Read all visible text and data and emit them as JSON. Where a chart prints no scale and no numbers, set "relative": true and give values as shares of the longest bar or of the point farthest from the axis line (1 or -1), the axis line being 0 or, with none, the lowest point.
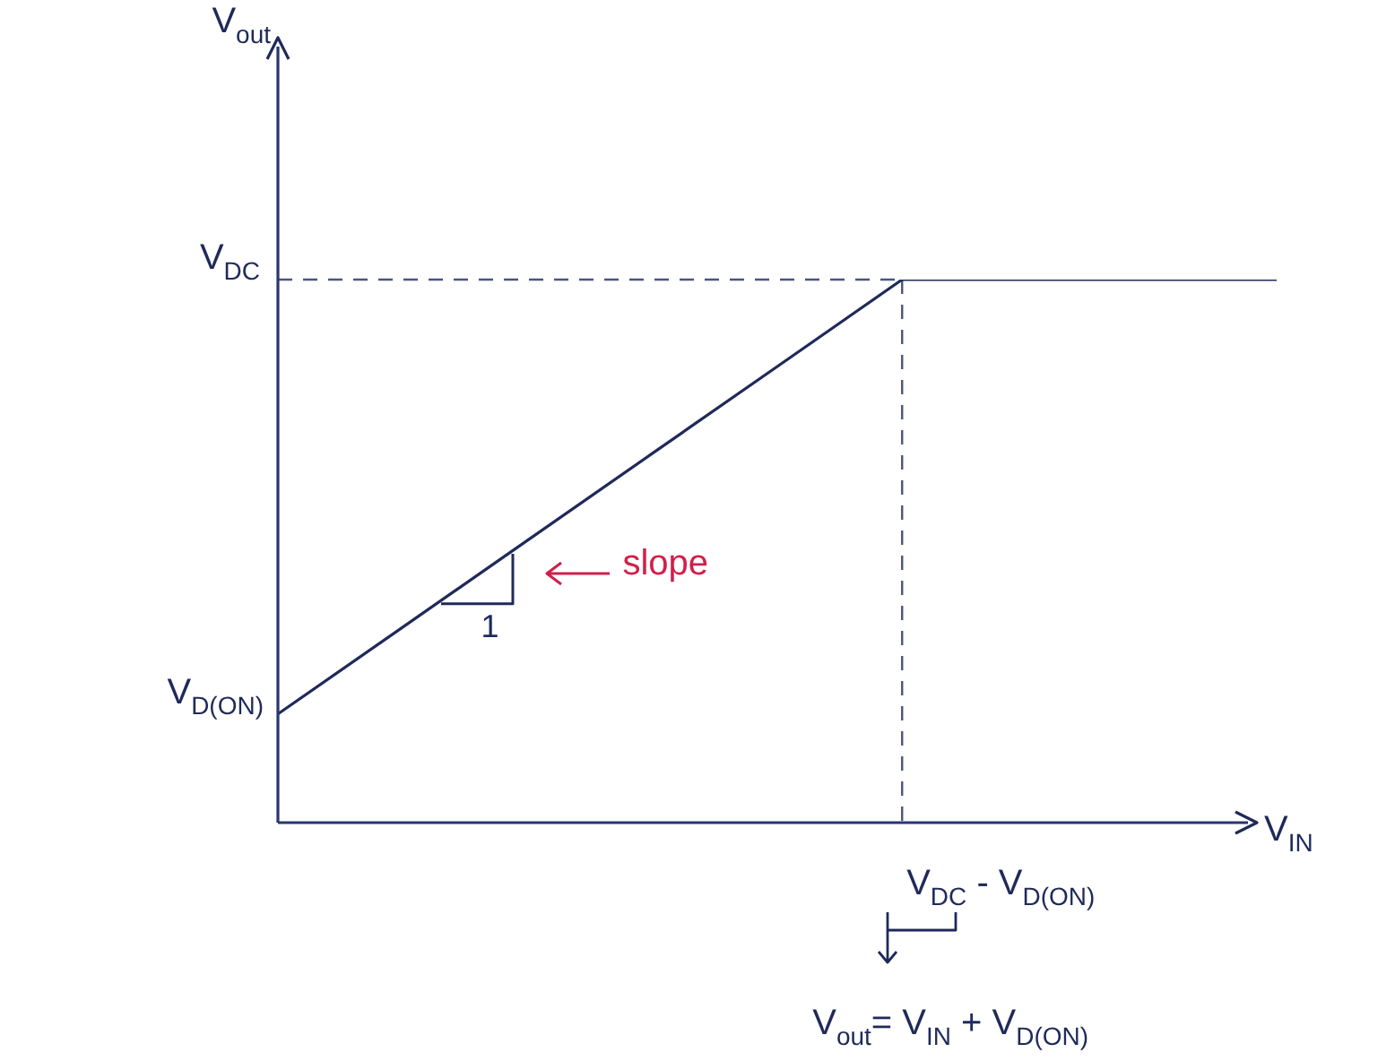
{
  "chart_data": {
    "type": "line",
    "relative": true,
    "xlabel": "V$_{IN}$",
    "categories": [
      null,
      null,
      null,
      null,
      null,
      null,
      null,
      null,
      null
    ],
    "series": [
      {
        "color": "#1f2a5a",
        "values": [
          0.2,
          0.36,
          0.52,
          0.68,
          0.84,
          1,
          1,
          1,
          1
        ]
      }
    ],
    "annotations": [
      "V$_{DC}$",
      "V$_{D(ON)}$",
      "V$_{DC}$ - V$_{D(ON)}$",
      "V$_{out}$= V$_{IN}$ + V$_{D(ON)}$",
      "slope",
      "1",
      "V$_{out}$"
    ],
    "marker": "none",
    "line_style": "solid",
    "legend": false
  }
}
